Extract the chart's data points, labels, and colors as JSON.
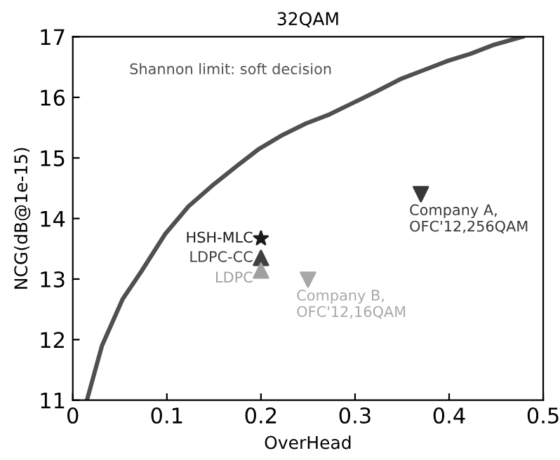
{
  "chart_data": {
    "type": "scatter",
    "title": "32QAM",
    "xlabel": "OverHead",
    "ylabel": "NCG(dB@1e-15)",
    "xlim": [
      0,
      0.5
    ],
    "ylim": [
      11,
      17
    ],
    "xticks": [
      0,
      0.1,
      0.2,
      0.3,
      0.4,
      0.5
    ],
    "yticks": [
      11,
      12,
      13,
      14,
      15,
      16,
      17
    ],
    "grid": false,
    "legend": false,
    "series": [
      {
        "name": "Shannon limit: soft decision",
        "type": "line",
        "color": "#505050",
        "marker": "none",
        "line_style": "solid",
        "x": [
          0.015,
          0.031,
          0.053,
          0.073,
          0.098,
          0.123,
          0.148,
          0.173,
          0.198,
          0.223,
          0.248,
          0.273,
          0.298,
          0.323,
          0.348,
          0.373,
          0.398,
          0.423,
          0.448,
          0.478
        ],
        "values": [
          11,
          11.9,
          12.67,
          13.13,
          13.74,
          14.2,
          14.54,
          14.85,
          15.15,
          15.38,
          15.57,
          15.72,
          15.91,
          16.1,
          16.3,
          16.45,
          16.6,
          16.72,
          16.87,
          17
        ]
      },
      {
        "name": "HSH-MLC",
        "color": "#1a1a1a",
        "marker": "star",
        "x": [
          0.2
        ],
        "values": [
          13.67
        ]
      },
      {
        "name": "LDPC-CC",
        "color": "#404040",
        "marker": "triangle",
        "x": [
          0.2
        ],
        "values": [
          13.35
        ]
      },
      {
        "name": "LDPC",
        "color": "#a0a0a0",
        "marker": "triangle",
        "x": [
          0.2
        ],
        "values": [
          13.14
        ]
      },
      {
        "name": "Company B,\nOFC'12,16QAM",
        "color": "#a8a8a8",
        "marker": "triangle_down",
        "x": [
          0.25
        ],
        "values": [
          12.99
        ]
      },
      {
        "name": "Company A,\nOFC'12,256QAM",
        "color": "#383838",
        "marker": "triangle_down",
        "x": [
          0.37
        ],
        "values": [
          14.4
        ]
      }
    ]
  }
}
